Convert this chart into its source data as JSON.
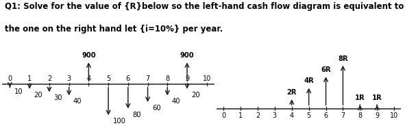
{
  "title_line1": "Q1: Solve for the value of {R}below so the left-hand cash flow diagram is equivalent to",
  "title_line2": "the one on the right hand let {i=10%} per year.",
  "left_up_flows": {
    "4": 900,
    "9": 900
  },
  "left_down_flows": {
    "0": 10,
    "1": 20,
    "2": 30,
    "3": 40,
    "5": 100,
    "6": 80,
    "7": 60,
    "8": 40,
    "9": 20
  },
  "right_up_labels": {
    "4": "2R",
    "5": "4R",
    "6": "6R",
    "7": "8R",
    "8": "1R",
    "9": "1R"
  },
  "right_up_vals": {
    "4": 2,
    "5": 4,
    "6": 6,
    "7": 8,
    "8": 1,
    "9": 1
  },
  "arrow_color": "#222222",
  "title_fontsize": 8.5,
  "tick_fontsize": 7.0,
  "label_fontsize": 7.2,
  "bold_label_fontsize": 7.2
}
